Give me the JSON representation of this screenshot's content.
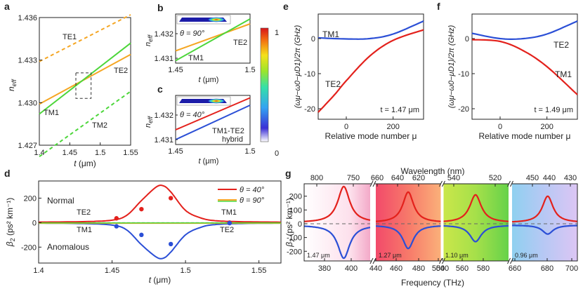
{
  "panels": {
    "a": {
      "label": "a",
      "xlabel_var": "t",
      "xlabel_unit": "(μm)",
      "ylabel_main": "n",
      "ylabel_sub": "eff",
      "xticks": [
        "1.4",
        "1.45",
        "1.5",
        "1.55"
      ],
      "yticks": [
        "1.436",
        "1.433",
        "1.430",
        "1.427"
      ],
      "modes": [
        "TE1",
        "TE2",
        "TM1",
        "TM2"
      ]
    },
    "b": {
      "label": "b",
      "theta": "θ = 90°",
      "xlabel_var": "t",
      "xlabel_unit": "(μm)",
      "ylabel_main": "n",
      "ylabel_sub": "eff",
      "xticks": [
        "1.45",
        "1.5"
      ],
      "yticks": [
        "1.432",
        "1.431"
      ],
      "modes": [
        "TE2",
        "TM1"
      ]
    },
    "c": {
      "label": "c",
      "theta": "θ = 40°",
      "xlabel_var": "t",
      "xlabel_unit": "(μm)",
      "ylabel_main": "n",
      "ylabel_sub": "eff",
      "xticks": [
        "1.45",
        "1.5"
      ],
      "yticks": [
        "1.432",
        "1.431"
      ],
      "hybrid_line1": "TM1-TE2",
      "hybrid_line2": "hybrid"
    },
    "colorbar": {
      "max": "1",
      "min": "0"
    },
    "d": {
      "label": "d",
      "ylabel_main": "β",
      "ylabel_sub": "2",
      "ylabel_unit": "(ps² km⁻¹)",
      "xlabel_var": "t",
      "xlabel_unit": "(μm)",
      "xticks": [
        "1.4",
        "1.45",
        "1.5",
        "1.55"
      ],
      "yticks": [
        "200",
        "0",
        "-200"
      ],
      "normal": "Normal",
      "anomalous": "Anomalous",
      "legend": [
        "θ = 40°",
        "θ = 90°"
      ],
      "mode_labels": [
        "TE2",
        "TM1",
        "TM1",
        "TE2"
      ]
    },
    "e": {
      "label": "e",
      "ylabel": "(ωμ−ω0−μD1)/2π (GHz)",
      "xlabel": "Relative mode number μ",
      "xticks": [
        "0",
        "200"
      ],
      "yticks": [
        "0",
        "-10",
        "-20"
      ],
      "modes": [
        "TM1",
        "TE2"
      ],
      "thickness": "t = 1.47 μm"
    },
    "f": {
      "label": "f",
      "ylabel": "(ωμ−ω0−μD1)/2π (GHz)",
      "xlabel": "Relative mode number μ",
      "xticks": [
        "0",
        "200"
      ],
      "yticks": [
        "0",
        "-10",
        "-20"
      ],
      "modes": [
        "TE2",
        "TM1"
      ],
      "thickness": "t = 1.49 μm"
    },
    "g": {
      "label": "g",
      "top_label": "Wavelength (nm)",
      "bottom_label": "Frequency (THz)",
      "ylabel_main": "β",
      "ylabel_sub": "2",
      "ylabel_unit": "(ps² km⁻¹)",
      "yticks": [
        "200",
        "100",
        "0",
        "-100",
        "-200"
      ],
      "top_ticks": [
        "800",
        "750",
        "660",
        "640",
        "620",
        "540",
        "520",
        "450",
        "440",
        "430"
      ],
      "bottom_ticks": [
        "380",
        "400",
        "440",
        "460",
        "480",
        "500",
        "540",
        "560",
        "580",
        "660",
        "680",
        "700"
      ],
      "segment_labels": [
        "1.47 μm",
        "1.27 μm",
        "1.10 μm",
        "0.96 μm"
      ]
    }
  },
  "colors": {
    "te": "#f5a623",
    "tm": "#4cd63a",
    "red": "#e3211c",
    "blue": "#2b4fd6",
    "gray": "#777777"
  },
  "chart_data": [
    {
      "panel": "a",
      "type": "line",
      "xlabel": "t (μm)",
      "ylabel": "n_eff",
      "xlim": [
        1.4,
        1.55
      ],
      "ylim": [
        1.427,
        1.436
      ],
      "series": [
        {
          "name": "TE1",
          "style": "dashed",
          "color": "orange",
          "x": [
            1.4,
            1.55
          ],
          "y": [
            1.4329,
            1.4362
          ]
        },
        {
          "name": "TE2",
          "style": "solid",
          "color": "orange",
          "x": [
            1.4,
            1.55
          ],
          "y": [
            1.4299,
            1.4334
          ]
        },
        {
          "name": "TM1",
          "style": "solid",
          "color": "green",
          "x": [
            1.4,
            1.55
          ],
          "y": [
            1.4292,
            1.4342
          ]
        },
        {
          "name": "TM2",
          "style": "dashed",
          "color": "green",
          "x": [
            1.4,
            1.55
          ],
          "y": [
            1.4262,
            1.4308
          ]
        }
      ]
    },
    {
      "panel": "b",
      "type": "line",
      "xlim": [
        1.45,
        1.5
      ],
      "ylim": [
        1.4308,
        1.4328
      ],
      "theta": 90,
      "series": [
        {
          "name": "TE2",
          "color": "orange",
          "x": [
            1.45,
            1.5
          ],
          "y": [
            1.4313,
            1.4324
          ]
        },
        {
          "name": "TM1",
          "color": "green",
          "x": [
            1.45,
            1.5
          ],
          "y": [
            1.4309,
            1.4326
          ]
        }
      ]
    },
    {
      "panel": "c",
      "type": "line",
      "xlim": [
        1.45,
        1.5
      ],
      "ylim": [
        1.4308,
        1.4328
      ],
      "theta": 40,
      "series": [
        {
          "name": "upper",
          "color": "red",
          "x": [
            1.45,
            1.5
          ],
          "y": [
            1.4314,
            1.4327
          ]
        },
        {
          "name": "lower",
          "color": "blue",
          "x": [
            1.45,
            1.5
          ],
          "y": [
            1.431,
            1.4324
          ]
        }
      ]
    },
    {
      "panel": "d",
      "type": "line",
      "xlabel": "t (μm)",
      "ylabel": "β2 (ps² km⁻¹)",
      "xlim": [
        1.4,
        1.565
      ],
      "ylim": [
        -330,
        340
      ],
      "series": [
        {
          "name": "θ = 40° normal",
          "color": "red",
          "x": [
            1.4,
            1.43,
            1.45,
            1.46,
            1.47,
            1.48,
            1.485,
            1.49,
            1.5,
            1.51,
            1.52,
            1.54,
            1.565
          ],
          "y": [
            4,
            8,
            20,
            60,
            180,
            290,
            300,
            250,
            100,
            40,
            16,
            7,
            4
          ]
        },
        {
          "name": "θ = 40° anomalous",
          "color": "blue",
          "x": [
            1.4,
            1.43,
            1.45,
            1.46,
            1.47,
            1.48,
            1.485,
            1.49,
            1.5,
            1.51,
            1.52,
            1.54,
            1.565
          ],
          "y": [
            -4,
            -8,
            -20,
            -60,
            -180,
            -280,
            -290,
            -240,
            -100,
            -40,
            -16,
            -7,
            -4
          ]
        },
        {
          "name": "θ = 90°",
          "color": "orange",
          "x": [
            1.4,
            1.565
          ],
          "y": [
            -4,
            -4
          ]
        }
      ],
      "points_red": [
        [
          1.453,
          35
        ],
        [
          1.47,
          110
        ],
        [
          1.49,
          200
        ],
        [
          1.53,
          0
        ]
      ],
      "points_blue": [
        [
          1.453,
          -30
        ],
        [
          1.47,
          -100
        ],
        [
          1.49,
          -175
        ],
        [
          1.53,
          -4
        ]
      ]
    },
    {
      "panel": "e",
      "type": "line",
      "xlabel": "Relative mode number μ",
      "xlim": [
        -120,
        330
      ],
      "ylim": [
        -23,
        7
      ],
      "series": [
        {
          "name": "TM1",
          "color": "blue",
          "x": [
            -120,
            0,
            100,
            200,
            330
          ],
          "y": [
            0.2,
            -0.1,
            0,
            1.3,
            5.0
          ]
        },
        {
          "name": "TE2",
          "color": "red",
          "x": [
            -120,
            -50,
            0,
            100,
            200,
            330
          ],
          "y": [
            -21,
            -16,
            -12,
            -5,
            -0.5,
            2.5
          ]
        }
      ]
    },
    {
      "panel": "f",
      "type": "line",
      "xlabel": "Relative mode number μ",
      "xlim": [
        -120,
        330
      ],
      "ylim": [
        -23,
        7
      ],
      "series": [
        {
          "name": "TE2",
          "color": "blue",
          "x": [
            -120,
            0,
            100,
            200,
            330
          ],
          "y": [
            1.5,
            0,
            0,
            1.3,
            5.0
          ]
        },
        {
          "name": "TM1",
          "color": "red",
          "x": [
            -120,
            0,
            100,
            200,
            330
          ],
          "y": [
            -0.3,
            -0.8,
            -3.5,
            -8,
            -16
          ]
        }
      ]
    },
    {
      "panel": "g",
      "type": "line",
      "xlabel": "Frequency (THz)",
      "ylabel": "β2 (ps² km⁻¹)",
      "ylim": [
        -270,
        290
      ],
      "segments": [
        {
          "xlim": [
            360,
            410
          ],
          "thickness": "1.47 μm",
          "peak_x": 390,
          "peak_y": 270,
          "dip_y": -250
        },
        {
          "xlim": [
            445,
            500
          ],
          "thickness": "1.27 μm",
          "peak_x": 472,
          "peak_y": 230,
          "dip_y": -180
        },
        {
          "xlim": [
            538,
            590
          ],
          "thickness": "1.10 μm",
          "peak_x": 564,
          "peak_y": 210,
          "dip_y": -130
        },
        {
          "xlim": [
            650,
            705
          ],
          "thickness": "0.96 μm",
          "peak_x": 680,
          "peak_y": 200,
          "dip_y": -75
        }
      ]
    }
  ]
}
